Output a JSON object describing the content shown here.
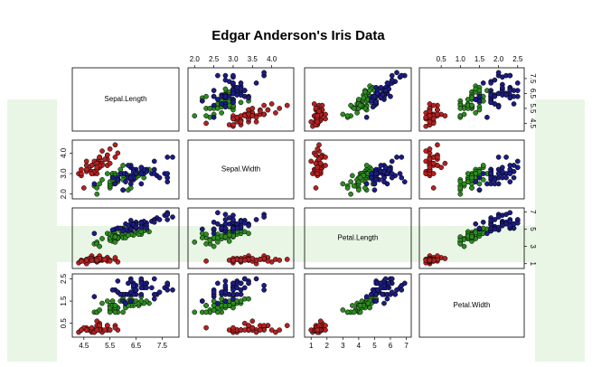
{
  "chart_data": {
    "type": "pairs",
    "title": "Edgar Anderson's Iris Data",
    "variables": [
      {
        "name": "Sepal.Length",
        "lim": [
          4.16,
          8.04
        ],
        "xticks": [
          4.5,
          5.5,
          6.5,
          7.5
        ],
        "yticks": [
          4.5,
          5.5,
          6.5,
          7.5
        ]
      },
      {
        "name": "Sepal.Width",
        "lim": [
          1.9,
          4.5
        ],
        "xticks": [
          {
            "value": 2,
            "label": "2.0"
          },
          2.5,
          {
            "value": 3,
            "label": "3.0"
          },
          3.5,
          {
            "value": 4,
            "label": "4.0"
          }
        ],
        "yticks": [
          {
            "value": 2,
            "label": "2.0"
          },
          {
            "value": 3,
            "label": "3.0"
          },
          {
            "value": 4,
            "label": "4.0"
          }
        ]
      },
      {
        "name": "Petal.Length",
        "lim": [
          0.76,
          7.14
        ],
        "xticks": [
          1,
          2,
          3,
          4,
          5,
          6,
          7
        ],
        "yticks": [
          1,
          3,
          5,
          7
        ]
      },
      {
        "name": "Petal.Width",
        "lim": [
          0.0,
          2.6
        ],
        "xticks": [
          0.5,
          {
            "value": 1,
            "label": "1.0"
          },
          1.5,
          {
            "value": 2,
            "label": "2.0"
          },
          2.5
        ],
        "yticks": [
          0.5,
          1.5,
          2.5
        ]
      }
    ],
    "series": [
      {
        "color": "#b22222",
        "values": [
          [
            5.1,
            4.9,
            4.7,
            4.6,
            5.0,
            5.4,
            4.6,
            5.0,
            4.4,
            4.9,
            5.4,
            4.8,
            4.8,
            4.3,
            5.8,
            5.7,
            5.4,
            5.1,
            5.7,
            5.1,
            5.4,
            5.1,
            4.6,
            5.1,
            4.8,
            5.0,
            5.0,
            5.2,
            5.2,
            4.7,
            4.8,
            5.4,
            5.2,
            5.5,
            4.9,
            5.0,
            5.5,
            4.9,
            4.4,
            5.1,
            5.0,
            4.5,
            4.4,
            5.0,
            5.1,
            4.8,
            5.1,
            4.6,
            5.3,
            5.0
          ],
          [
            3.5,
            3.0,
            3.2,
            3.1,
            3.6,
            3.9,
            3.4,
            3.4,
            2.9,
            3.1,
            3.7,
            3.4,
            3.0,
            3.0,
            4.0,
            4.4,
            3.9,
            3.5,
            3.8,
            3.8,
            3.4,
            3.7,
            3.6,
            3.3,
            3.4,
            3.0,
            3.4,
            3.5,
            3.4,
            3.2,
            3.1,
            3.4,
            4.1,
            4.2,
            3.1,
            3.2,
            3.5,
            3.6,
            3.0,
            3.4,
            3.5,
            2.3,
            3.2,
            3.5,
            3.8,
            3.0,
            3.8,
            3.2,
            3.7,
            3.3
          ],
          [
            1.4,
            1.4,
            1.3,
            1.5,
            1.4,
            1.7,
            1.4,
            1.5,
            1.4,
            1.5,
            1.5,
            1.6,
            1.4,
            1.1,
            1.2,
            1.5,
            1.3,
            1.4,
            1.7,
            1.5,
            1.7,
            1.5,
            1.0,
            1.7,
            1.9,
            1.6,
            1.6,
            1.5,
            1.4,
            1.6,
            1.6,
            1.5,
            1.5,
            1.4,
            1.5,
            1.2,
            1.3,
            1.4,
            1.3,
            1.5,
            1.3,
            1.3,
            1.3,
            1.6,
            1.9,
            1.4,
            1.6,
            1.4,
            1.5,
            1.4
          ],
          [
            0.2,
            0.2,
            0.2,
            0.2,
            0.2,
            0.4,
            0.3,
            0.2,
            0.2,
            0.1,
            0.2,
            0.2,
            0.1,
            0.1,
            0.2,
            0.4,
            0.4,
            0.3,
            0.3,
            0.3,
            0.2,
            0.4,
            0.2,
            0.5,
            0.2,
            0.2,
            0.4,
            0.2,
            0.2,
            0.2,
            0.2,
            0.4,
            0.1,
            0.2,
            0.2,
            0.2,
            0.2,
            0.1,
            0.2,
            0.2,
            0.3,
            0.3,
            0.2,
            0.6,
            0.4,
            0.3,
            0.2,
            0.2,
            0.2,
            0.2
          ]
        ]
      },
      {
        "color": "#2e8b22",
        "values": [
          [
            7.0,
            6.4,
            6.9,
            5.5,
            6.5,
            5.7,
            6.3,
            4.9,
            6.6,
            5.2,
            5.0,
            5.9,
            6.0,
            6.1,
            5.6,
            6.7,
            5.6,
            5.8,
            6.2,
            5.6,
            5.9,
            6.1,
            6.3,
            6.1,
            6.4,
            6.6,
            6.8,
            6.7,
            6.0,
            5.7,
            5.5,
            5.5,
            5.8,
            6.0,
            5.4,
            6.0,
            6.7,
            6.3,
            5.6,
            5.5,
            5.5,
            6.1,
            5.8,
            5.0,
            5.6,
            5.7,
            5.7,
            6.2,
            5.1,
            5.7
          ],
          [
            3.2,
            3.2,
            3.1,
            2.3,
            2.8,
            2.8,
            3.3,
            2.4,
            2.9,
            2.7,
            2.0,
            3.0,
            2.2,
            2.9,
            2.9,
            3.1,
            3.0,
            2.7,
            2.2,
            2.5,
            3.2,
            2.8,
            2.5,
            2.8,
            2.9,
            3.0,
            2.8,
            3.0,
            2.9,
            2.6,
            2.4,
            2.4,
            2.7,
            2.7,
            3.0,
            3.4,
            3.1,
            2.3,
            3.0,
            2.5,
            2.6,
            3.0,
            2.6,
            2.3,
            2.7,
            3.0,
            2.9,
            2.9,
            2.5,
            2.8
          ],
          [
            4.7,
            4.5,
            4.9,
            4.0,
            4.6,
            4.5,
            4.7,
            3.3,
            4.6,
            3.9,
            3.5,
            4.2,
            4.0,
            4.7,
            3.6,
            4.4,
            4.5,
            4.1,
            4.5,
            3.9,
            4.8,
            4.0,
            4.9,
            4.7,
            4.3,
            4.4,
            4.8,
            5.0,
            4.5,
            3.5,
            3.8,
            3.7,
            3.9,
            5.1,
            4.5,
            4.5,
            4.7,
            4.4,
            4.1,
            4.0,
            4.4,
            4.6,
            4.0,
            3.3,
            4.2,
            4.2,
            4.2,
            4.3,
            3.0,
            4.1
          ],
          [
            1.4,
            1.5,
            1.5,
            1.3,
            1.5,
            1.3,
            1.6,
            1.0,
            1.3,
            1.4,
            1.0,
            1.5,
            1.0,
            1.4,
            1.3,
            1.4,
            1.5,
            1.0,
            1.5,
            1.1,
            1.8,
            1.3,
            1.5,
            1.2,
            1.3,
            1.4,
            1.4,
            1.7,
            1.5,
            1.0,
            1.1,
            1.0,
            1.2,
            1.6,
            1.5,
            1.6,
            1.5,
            1.3,
            1.3,
            1.3,
            1.2,
            1.4,
            1.2,
            1.0,
            1.3,
            1.2,
            1.3,
            1.3,
            1.1,
            1.3
          ]
        ]
      },
      {
        "color": "#1c1c80",
        "values": [
          [
            6.3,
            5.8,
            7.1,
            6.3,
            6.5,
            7.6,
            4.9,
            7.3,
            6.7,
            7.2,
            6.5,
            6.4,
            6.8,
            5.7,
            5.8,
            6.4,
            6.5,
            7.7,
            7.7,
            6.0,
            6.9,
            5.6,
            7.7,
            6.3,
            6.7,
            7.2,
            6.2,
            6.1,
            6.4,
            7.2,
            7.4,
            7.9,
            6.4,
            6.3,
            6.1,
            7.7,
            6.3,
            6.4,
            6.0,
            6.9,
            6.7,
            6.9,
            5.8,
            6.8,
            6.7,
            6.7,
            6.3,
            6.5,
            6.2,
            5.9
          ],
          [
            3.3,
            2.7,
            3.0,
            2.9,
            3.0,
            3.0,
            2.5,
            2.9,
            2.5,
            3.6,
            3.2,
            2.7,
            3.0,
            2.5,
            2.8,
            3.2,
            3.0,
            3.8,
            2.6,
            2.2,
            3.2,
            2.8,
            2.8,
            2.7,
            3.3,
            3.2,
            2.8,
            3.0,
            2.8,
            3.0,
            2.8,
            3.8,
            2.8,
            2.8,
            2.6,
            3.0,
            3.4,
            3.1,
            3.0,
            3.1,
            3.1,
            3.1,
            2.7,
            3.2,
            3.3,
            3.0,
            2.5,
            3.0,
            3.4,
            3.0
          ],
          [
            6.0,
            5.1,
            5.9,
            5.6,
            5.8,
            6.6,
            4.5,
            6.3,
            5.8,
            6.1,
            5.1,
            5.3,
            5.5,
            5.0,
            5.1,
            5.3,
            5.5,
            6.7,
            6.9,
            5.0,
            5.7,
            4.9,
            6.7,
            4.9,
            5.7,
            6.0,
            4.8,
            4.9,
            5.6,
            5.8,
            6.1,
            6.4,
            5.6,
            5.1,
            5.6,
            6.1,
            5.6,
            5.5,
            4.8,
            5.4,
            5.6,
            5.1,
            5.1,
            5.9,
            5.7,
            5.2,
            5.0,
            5.2,
            5.4,
            5.1
          ],
          [
            2.5,
            1.9,
            2.1,
            1.8,
            2.2,
            2.1,
            1.7,
            1.8,
            1.8,
            2.5,
            2.0,
            1.9,
            2.1,
            2.0,
            2.4,
            2.3,
            1.8,
            2.2,
            2.3,
            1.5,
            2.3,
            2.0,
            2.0,
            1.8,
            2.1,
            1.8,
            1.8,
            1.8,
            2.1,
            1.6,
            1.9,
            2.0,
            2.2,
            1.5,
            1.4,
            2.3,
            2.4,
            1.8,
            1.8,
            2.1,
            2.4,
            2.3,
            1.9,
            2.3,
            2.5,
            2.3,
            1.9,
            2.0,
            2.3,
            1.8
          ]
        ]
      }
    ]
  }
}
